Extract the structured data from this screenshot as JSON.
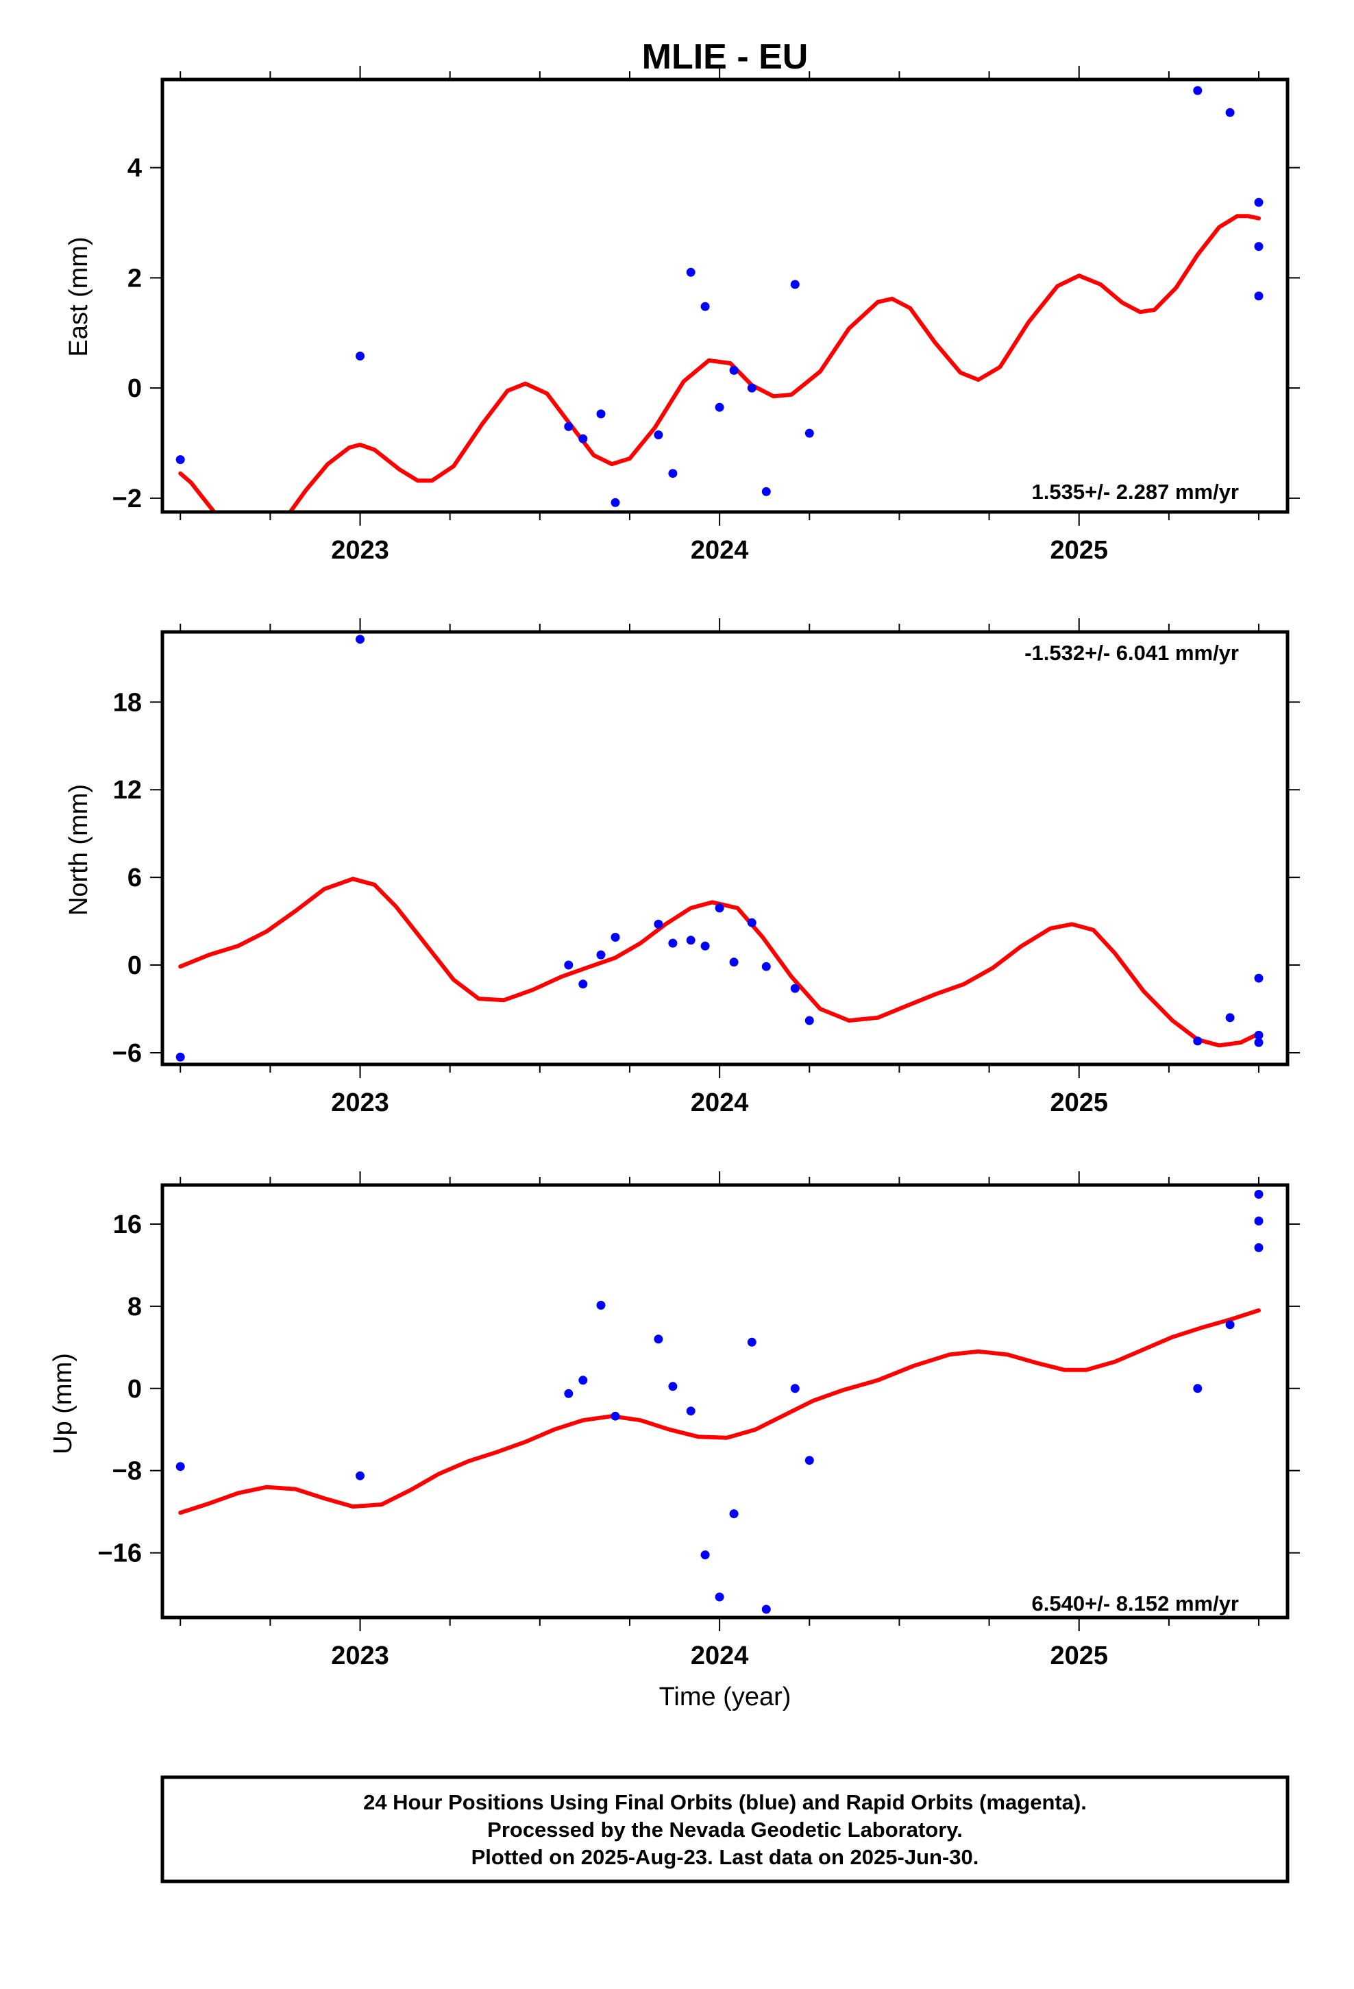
{
  "title": "MLIE - EU",
  "xlabel": "Time (year)",
  "colors": {
    "data": "#0000ff",
    "fit": "#ff0000",
    "frame": "#000000"
  },
  "footer": {
    "line1": "24 Hour Positions Using Final Orbits (blue) and Rapid Orbits (magenta).",
    "line2": "Processed by the Nevada Geodetic Laboratory.",
    "line3": "Plotted on 2025-Aug-23. Last data on 2025-Jun-30."
  },
  "chart_data": [
    {
      "type": "scatter",
      "ylabel": "East (mm)",
      "rate": "1.535+/- 2.287 mm/yr",
      "xlim": [
        2022.45,
        2025.58
      ],
      "ylim": [
        -2.25,
        5.6
      ],
      "xticks": [
        2023,
        2024,
        2025
      ],
      "yticks": [
        -2,
        0,
        2,
        4
      ],
      "points": [
        [
          2022.5,
          -1.3
        ],
        [
          2023.0,
          0.58
        ],
        [
          2023.58,
          -0.7
        ],
        [
          2023.62,
          -0.92
        ],
        [
          2023.67,
          -0.47
        ],
        [
          2023.71,
          -2.08
        ],
        [
          2023.83,
          -0.85
        ],
        [
          2023.87,
          -1.55
        ],
        [
          2023.92,
          2.1
        ],
        [
          2023.96,
          1.48
        ],
        [
          2024.0,
          -0.35
        ],
        [
          2024.04,
          0.32
        ],
        [
          2024.09,
          0.0
        ],
        [
          2024.13,
          -1.88
        ],
        [
          2024.21,
          1.88
        ],
        [
          2024.25,
          -0.82
        ],
        [
          2025.33,
          5.4
        ],
        [
          2025.42,
          5.0
        ],
        [
          2025.5,
          3.37
        ],
        [
          2025.5,
          2.57
        ],
        [
          2025.5,
          1.67
        ]
      ],
      "fit": [
        [
          2022.5,
          -1.55
        ],
        [
          2022.53,
          -1.72
        ],
        [
          2022.56,
          -1.97
        ],
        [
          2022.6,
          -2.3
        ],
        [
          2022.8,
          -2.3
        ],
        [
          2022.85,
          -1.85
        ],
        [
          2022.91,
          -1.38
        ],
        [
          2022.97,
          -1.08
        ],
        [
          2023.0,
          -1.03
        ],
        [
          2023.04,
          -1.12
        ],
        [
          2023.11,
          -1.48
        ],
        [
          2023.16,
          -1.68
        ],
        [
          2023.2,
          -1.68
        ],
        [
          2023.26,
          -1.42
        ],
        [
          2023.34,
          -0.65
        ],
        [
          2023.41,
          -0.05
        ],
        [
          2023.46,
          0.08
        ],
        [
          2023.52,
          -0.1
        ],
        [
          2023.58,
          -0.62
        ],
        [
          2023.65,
          -1.22
        ],
        [
          2023.7,
          -1.38
        ],
        [
          2023.75,
          -1.28
        ],
        [
          2023.82,
          -0.72
        ],
        [
          2023.9,
          0.12
        ],
        [
          2023.97,
          0.5
        ],
        [
          2024.03,
          0.45
        ],
        [
          2024.09,
          0.05
        ],
        [
          2024.15,
          -0.15
        ],
        [
          2024.2,
          -0.12
        ],
        [
          2024.28,
          0.3
        ],
        [
          2024.36,
          1.08
        ],
        [
          2024.44,
          1.56
        ],
        [
          2024.48,
          1.62
        ],
        [
          2024.53,
          1.45
        ],
        [
          2024.6,
          0.82
        ],
        [
          2024.67,
          0.28
        ],
        [
          2024.72,
          0.15
        ],
        [
          2024.78,
          0.38
        ],
        [
          2024.86,
          1.2
        ],
        [
          2024.94,
          1.85
        ],
        [
          2025.0,
          2.04
        ],
        [
          2025.06,
          1.88
        ],
        [
          2025.12,
          1.55
        ],
        [
          2025.17,
          1.38
        ],
        [
          2025.21,
          1.42
        ],
        [
          2025.27,
          1.82
        ],
        [
          2025.33,
          2.42
        ],
        [
          2025.39,
          2.92
        ],
        [
          2025.44,
          3.12
        ],
        [
          2025.47,
          3.12
        ],
        [
          2025.5,
          3.08
        ]
      ]
    },
    {
      "type": "scatter",
      "ylabel": "North (mm)",
      "rate": "-1.532+/- 6.041 mm/yr",
      "xlim": [
        2022.45,
        2025.58
      ],
      "ylim": [
        -6.8,
        22.8
      ],
      "xticks": [
        2023,
        2024,
        2025
      ],
      "yticks": [
        -6,
        0,
        6,
        12,
        18
      ],
      "points": [
        [
          2022.5,
          -6.3
        ],
        [
          2023.0,
          22.3
        ],
        [
          2023.58,
          0.0
        ],
        [
          2023.62,
          -1.3
        ],
        [
          2023.67,
          0.7
        ],
        [
          2023.71,
          1.9
        ],
        [
          2023.83,
          2.8
        ],
        [
          2023.87,
          1.5
        ],
        [
          2023.92,
          1.7
        ],
        [
          2023.96,
          1.3
        ],
        [
          2024.0,
          3.9
        ],
        [
          2024.04,
          0.2
        ],
        [
          2024.09,
          2.9
        ],
        [
          2024.13,
          -0.1
        ],
        [
          2024.21,
          -1.6
        ],
        [
          2024.25,
          -3.8
        ],
        [
          2025.33,
          -5.2
        ],
        [
          2025.42,
          -3.6
        ],
        [
          2025.5,
          -0.9
        ],
        [
          2025.5,
          -4.8
        ],
        [
          2025.5,
          -5.3
        ]
      ],
      "fit": [
        [
          2022.5,
          -0.1
        ],
        [
          2022.58,
          0.7
        ],
        [
          2022.66,
          1.3
        ],
        [
          2022.74,
          2.3
        ],
        [
          2022.82,
          3.7
        ],
        [
          2022.9,
          5.2
        ],
        [
          2022.98,
          5.9
        ],
        [
          2023.04,
          5.5
        ],
        [
          2023.1,
          4.0
        ],
        [
          2023.18,
          1.5
        ],
        [
          2023.26,
          -1.0
        ],
        [
          2023.33,
          -2.3
        ],
        [
          2023.4,
          -2.4
        ],
        [
          2023.48,
          -1.7
        ],
        [
          2023.56,
          -0.8
        ],
        [
          2023.64,
          -0.1
        ],
        [
          2023.71,
          0.5
        ],
        [
          2023.78,
          1.5
        ],
        [
          2023.85,
          2.8
        ],
        [
          2023.92,
          3.9
        ],
        [
          2023.98,
          4.3
        ],
        [
          2024.05,
          3.9
        ],
        [
          2024.12,
          1.9
        ],
        [
          2024.2,
          -0.8
        ],
        [
          2024.28,
          -3.0
        ],
        [
          2024.36,
          -3.8
        ],
        [
          2024.44,
          -3.6
        ],
        [
          2024.52,
          -2.8
        ],
        [
          2024.6,
          -2.0
        ],
        [
          2024.68,
          -1.3
        ],
        [
          2024.76,
          -0.2
        ],
        [
          2024.84,
          1.3
        ],
        [
          2024.92,
          2.5
        ],
        [
          2024.98,
          2.8
        ],
        [
          2025.04,
          2.4
        ],
        [
          2025.1,
          0.8
        ],
        [
          2025.18,
          -1.8
        ],
        [
          2025.26,
          -3.8
        ],
        [
          2025.33,
          -5.1
        ],
        [
          2025.39,
          -5.5
        ],
        [
          2025.45,
          -5.3
        ],
        [
          2025.5,
          -4.7
        ]
      ]
    },
    {
      "type": "scatter",
      "ylabel": "Up (mm)",
      "rate": "6.540+/- 8.152 mm/yr",
      "xlim": [
        2022.45,
        2025.58
      ],
      "ylim": [
        -22.3,
        19.8
      ],
      "xticks": [
        2023,
        2024,
        2025
      ],
      "yticks": [
        -16,
        -8,
        0,
        8,
        16
      ],
      "points": [
        [
          2022.5,
          -7.6
        ],
        [
          2023.0,
          -8.5
        ],
        [
          2023.58,
          -0.5
        ],
        [
          2023.62,
          0.8
        ],
        [
          2023.67,
          8.1
        ],
        [
          2023.71,
          -2.7
        ],
        [
          2023.83,
          4.8
        ],
        [
          2023.87,
          0.2
        ],
        [
          2023.92,
          -2.2
        ],
        [
          2023.96,
          -16.2
        ],
        [
          2024.0,
          -20.3
        ],
        [
          2024.04,
          -12.2
        ],
        [
          2024.09,
          4.5
        ],
        [
          2024.13,
          -21.5
        ],
        [
          2024.21,
          0.0
        ],
        [
          2024.25,
          -7.0
        ],
        [
          2025.33,
          0.0
        ],
        [
          2025.42,
          6.2
        ],
        [
          2025.5,
          18.9
        ],
        [
          2025.5,
          16.3
        ],
        [
          2025.5,
          13.7
        ]
      ],
      "fit": [
        [
          2022.5,
          -12.1
        ],
        [
          2022.58,
          -11.2
        ],
        [
          2022.66,
          -10.2
        ],
        [
          2022.74,
          -9.6
        ],
        [
          2022.82,
          -9.8
        ],
        [
          2022.9,
          -10.7
        ],
        [
          2022.98,
          -11.5
        ],
        [
          2023.06,
          -11.3
        ],
        [
          2023.14,
          -9.9
        ],
        [
          2023.22,
          -8.3
        ],
        [
          2023.3,
          -7.1
        ],
        [
          2023.38,
          -6.2
        ],
        [
          2023.46,
          -5.2
        ],
        [
          2023.54,
          -4.0
        ],
        [
          2023.62,
          -3.1
        ],
        [
          2023.7,
          -2.7
        ],
        [
          2023.78,
          -3.1
        ],
        [
          2023.86,
          -4.0
        ],
        [
          2023.94,
          -4.7
        ],
        [
          2024.02,
          -4.8
        ],
        [
          2024.1,
          -4.0
        ],
        [
          2024.18,
          -2.6
        ],
        [
          2024.26,
          -1.2
        ],
        [
          2024.34,
          -0.2
        ],
        [
          2024.44,
          0.8
        ],
        [
          2024.54,
          2.2
        ],
        [
          2024.64,
          3.3
        ],
        [
          2024.72,
          3.6
        ],
        [
          2024.8,
          3.3
        ],
        [
          2024.88,
          2.5
        ],
        [
          2024.96,
          1.8
        ],
        [
          2025.02,
          1.8
        ],
        [
          2025.1,
          2.6
        ],
        [
          2025.18,
          3.8
        ],
        [
          2025.26,
          5.0
        ],
        [
          2025.34,
          5.9
        ],
        [
          2025.42,
          6.7
        ],
        [
          2025.5,
          7.6
        ]
      ]
    }
  ]
}
